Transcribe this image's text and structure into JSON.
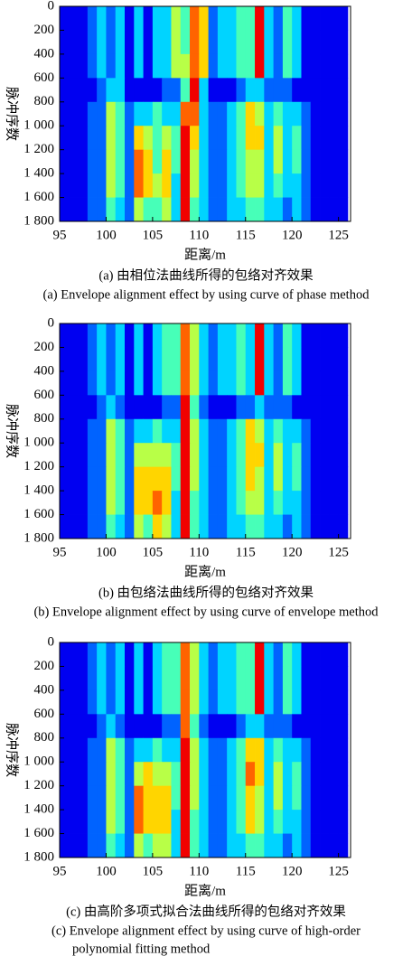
{
  "chart_data": [
    {
      "type": "heatmap",
      "x_label": "距离/m",
      "y_label": "脉冲序数",
      "caption_zh": "(a) 由相位法曲线所得的包络对齐效果",
      "caption_en": [
        "(a) Envelope alignment effect by using curve of phase method"
      ],
      "colormap": "jet",
      "zlim": [
        0,
        9
      ],
      "x_bins": [
        95,
        96,
        97,
        98,
        99,
        100,
        101,
        102,
        103,
        104,
        105,
        106,
        107,
        108,
        109,
        110,
        111,
        112,
        113,
        114,
        115,
        116,
        117,
        118,
        119,
        120,
        121,
        122,
        123,
        124,
        125,
        126
      ],
      "y_bins": [
        0,
        200,
        400,
        600,
        800,
        1000,
        1200,
        1400,
        1600,
        1800
      ],
      "values": [
        [
          1,
          1,
          1,
          2,
          3,
          2,
          3,
          1,
          3,
          1,
          3,
          3,
          5,
          4,
          7,
          6,
          2,
          3,
          3,
          4,
          4,
          8,
          3,
          2,
          4,
          3,
          1,
          1,
          1,
          1,
          1
        ],
        [
          1,
          1,
          1,
          2,
          3,
          2,
          3,
          1,
          3,
          1,
          3,
          3,
          5,
          4,
          7,
          6,
          2,
          3,
          3,
          4,
          4,
          8,
          3,
          2,
          4,
          3,
          1,
          1,
          1,
          1,
          1
        ],
        [
          1,
          1,
          1,
          2,
          3,
          2,
          3,
          1,
          3,
          1,
          3,
          3,
          5,
          5,
          7,
          6,
          2,
          3,
          3,
          4,
          4,
          8,
          3,
          2,
          4,
          3,
          1,
          1,
          1,
          1,
          1
        ],
        [
          1,
          1,
          1,
          1,
          2,
          3,
          3,
          1,
          1,
          1,
          1,
          2,
          2,
          4,
          8,
          3,
          1,
          1,
          1,
          2,
          3,
          3,
          2,
          2,
          2,
          1,
          1,
          1,
          1,
          1,
          1
        ],
        [
          1,
          1,
          1,
          2,
          2,
          5,
          4,
          2,
          3,
          3,
          4,
          3,
          3,
          7,
          7,
          3,
          2,
          2,
          3,
          4,
          6,
          5,
          3,
          4,
          3,
          3,
          2,
          1,
          1,
          1,
          1
        ],
        [
          1,
          1,
          1,
          2,
          2,
          5,
          4,
          2,
          6,
          5,
          4,
          5,
          4,
          8,
          6,
          3,
          2,
          2,
          3,
          4,
          6,
          6,
          3,
          5,
          3,
          4,
          2,
          1,
          1,
          1,
          1
        ],
        [
          1,
          1,
          1,
          2,
          2,
          5,
          4,
          2,
          7,
          6,
          4,
          6,
          4,
          8,
          5,
          3,
          2,
          2,
          3,
          4,
          5,
          5,
          3,
          5,
          3,
          4,
          2,
          1,
          1,
          1,
          1
        ],
        [
          1,
          1,
          1,
          2,
          2,
          5,
          4,
          2,
          7,
          6,
          5,
          6,
          3,
          8,
          5,
          3,
          2,
          2,
          3,
          4,
          5,
          5,
          3,
          4,
          3,
          3,
          2,
          1,
          1,
          1,
          1
        ],
        [
          1,
          1,
          1,
          2,
          2,
          4,
          3,
          2,
          5,
          4,
          4,
          5,
          3,
          8,
          4,
          3,
          2,
          2,
          3,
          3,
          4,
          4,
          3,
          3,
          2,
          3,
          2,
          1,
          1,
          1,
          1
        ]
      ],
      "xlim": [
        95,
        126.3
      ],
      "ylim": [
        1800,
        0
      ],
      "xticks": [
        95,
        100,
        105,
        110,
        115,
        120,
        125
      ],
      "yticks": [
        0,
        200,
        400,
        600,
        800,
        {
          "value": 1000,
          "label": "1 000"
        },
        {
          "value": 1200,
          "label": "1 200"
        },
        {
          "value": 1400,
          "label": "1 400"
        },
        {
          "value": 1600,
          "label": "1 600"
        },
        {
          "value": 1800,
          "label": "1 800"
        }
      ]
    },
    {
      "type": "heatmap",
      "x_label": "距离/m",
      "y_label": "脉冲序数",
      "caption_zh": "(b) 由包络法曲线所得的包络对齐效果",
      "caption_en": [
        "(b) Envelope alignment effect by using curve of envelope method"
      ],
      "colormap": "jet",
      "zlim": [
        0,
        9
      ],
      "x_bins": [
        95,
        96,
        97,
        98,
        99,
        100,
        101,
        102,
        103,
        104,
        105,
        106,
        107,
        108,
        109,
        110,
        111,
        112,
        113,
        114,
        115,
        116,
        117,
        118,
        119,
        120,
        121,
        122,
        123,
        124,
        125,
        126
      ],
      "y_bins": [
        0,
        200,
        400,
        600,
        800,
        1000,
        1200,
        1400,
        1600,
        1800
      ],
      "values": [
        [
          1,
          1,
          1,
          2,
          3,
          2,
          3,
          1,
          3,
          1,
          3,
          4,
          4,
          7,
          5,
          3,
          2,
          3,
          3,
          4,
          3,
          8,
          3,
          2,
          4,
          3,
          1,
          1,
          1,
          1,
          1
        ],
        [
          1,
          1,
          1,
          2,
          3,
          2,
          3,
          1,
          3,
          1,
          3,
          4,
          4,
          7,
          5,
          3,
          2,
          3,
          3,
          4,
          3,
          8,
          3,
          2,
          4,
          3,
          1,
          1,
          1,
          1,
          1
        ],
        [
          1,
          1,
          1,
          2,
          3,
          2,
          3,
          1,
          3,
          1,
          3,
          4,
          4,
          7,
          5,
          3,
          2,
          3,
          3,
          4,
          3,
          8,
          3,
          2,
          4,
          3,
          1,
          1,
          1,
          1,
          1
        ],
        [
          1,
          1,
          1,
          1,
          2,
          3,
          2,
          1,
          1,
          1,
          1,
          2,
          2,
          8,
          4,
          2,
          1,
          1,
          1,
          2,
          2,
          3,
          2,
          2,
          2,
          1,
          1,
          1,
          1,
          1,
          1
        ],
        [
          1,
          1,
          1,
          2,
          2,
          5,
          4,
          2,
          3,
          3,
          4,
          3,
          3,
          8,
          5,
          3,
          2,
          2,
          3,
          4,
          6,
          5,
          3,
          4,
          3,
          3,
          2,
          1,
          1,
          1,
          1
        ],
        [
          1,
          1,
          1,
          2,
          2,
          5,
          4,
          2,
          5,
          5,
          5,
          5,
          4,
          8,
          5,
          3,
          2,
          2,
          3,
          4,
          6,
          6,
          3,
          5,
          3,
          4,
          2,
          1,
          1,
          1,
          1
        ],
        [
          1,
          1,
          1,
          2,
          2,
          5,
          4,
          2,
          6,
          6,
          6,
          6,
          4,
          8,
          5,
          3,
          2,
          2,
          3,
          4,
          6,
          5,
          3,
          5,
          3,
          4,
          2,
          1,
          1,
          1,
          1
        ],
        [
          1,
          1,
          1,
          2,
          2,
          5,
          4,
          2,
          6,
          6,
          7,
          6,
          3,
          8,
          4,
          3,
          2,
          2,
          3,
          4,
          5,
          5,
          3,
          4,
          3,
          3,
          2,
          1,
          1,
          1,
          1
        ],
        [
          1,
          1,
          1,
          2,
          2,
          4,
          3,
          2,
          5,
          4,
          6,
          5,
          3,
          8,
          4,
          3,
          2,
          2,
          3,
          3,
          4,
          4,
          3,
          3,
          2,
          3,
          2,
          1,
          1,
          1,
          1
        ]
      ],
      "xlim": [
        95,
        126.3
      ],
      "ylim": [
        1800,
        0
      ],
      "xticks": [
        95,
        100,
        105,
        110,
        115,
        120,
        125
      ],
      "yticks": [
        0,
        200,
        400,
        600,
        800,
        {
          "value": 1000,
          "label": "1 000"
        },
        {
          "value": 1200,
          "label": "1 200"
        },
        {
          "value": 1400,
          "label": "1 400"
        },
        {
          "value": 1600,
          "label": "1 600"
        },
        {
          "value": 1800,
          "label": "1 800"
        }
      ]
    },
    {
      "type": "heatmap",
      "x_label": "距离/m",
      "y_label": "脉冲序数",
      "caption_zh": "(c) 由高阶多项式拟合法曲线所得的包络对齐效果",
      "caption_en": [
        "(c) Envelope alignment effect by using curve of high-order",
        "polynomial fitting method"
      ],
      "colormap": "jet",
      "zlim": [
        0,
        9
      ],
      "x_bins": [
        95,
        96,
        97,
        98,
        99,
        100,
        101,
        102,
        103,
        104,
        105,
        106,
        107,
        108,
        109,
        110,
        111,
        112,
        113,
        114,
        115,
        116,
        117,
        118,
        119,
        120,
        121,
        122,
        123,
        124,
        125,
        126
      ],
      "y_bins": [
        0,
        200,
        400,
        600,
        800,
        1000,
        1200,
        1400,
        1600,
        1800
      ],
      "values": [
        [
          1,
          1,
          1,
          2,
          3,
          2,
          3,
          1,
          3,
          1,
          3,
          4,
          4,
          7,
          5,
          3,
          2,
          3,
          3,
          4,
          4,
          8,
          3,
          2,
          4,
          3,
          1,
          1,
          1,
          1,
          1
        ],
        [
          1,
          1,
          1,
          2,
          3,
          2,
          3,
          1,
          3,
          1,
          3,
          4,
          4,
          7,
          5,
          3,
          2,
          3,
          3,
          4,
          4,
          8,
          3,
          2,
          4,
          3,
          1,
          1,
          1,
          1,
          1
        ],
        [
          1,
          1,
          1,
          2,
          3,
          2,
          3,
          1,
          3,
          1,
          3,
          4,
          4,
          7,
          5,
          3,
          2,
          3,
          3,
          4,
          4,
          8,
          3,
          2,
          4,
          3,
          1,
          1,
          1,
          1,
          1
        ],
        [
          1,
          1,
          1,
          1,
          2,
          3,
          2,
          1,
          1,
          1,
          1,
          2,
          2,
          7,
          4,
          2,
          1,
          1,
          1,
          2,
          3,
          3,
          2,
          2,
          2,
          1,
          1,
          1,
          1,
          1,
          1
        ],
        [
          1,
          1,
          1,
          2,
          2,
          5,
          4,
          2,
          3,
          3,
          4,
          3,
          3,
          8,
          5,
          3,
          2,
          2,
          3,
          4,
          6,
          6,
          3,
          4,
          3,
          3,
          2,
          1,
          1,
          1,
          1
        ],
        [
          1,
          1,
          1,
          2,
          2,
          5,
          4,
          2,
          5,
          6,
          5,
          5,
          4,
          8,
          5,
          3,
          2,
          2,
          3,
          4,
          7,
          6,
          3,
          5,
          3,
          4,
          2,
          1,
          1,
          1,
          1
        ],
        [
          1,
          1,
          1,
          2,
          2,
          5,
          4,
          2,
          7,
          6,
          6,
          6,
          4,
          8,
          5,
          3,
          2,
          2,
          3,
          4,
          6,
          5,
          3,
          5,
          3,
          4,
          2,
          1,
          1,
          1,
          1
        ],
        [
          1,
          1,
          1,
          2,
          2,
          5,
          4,
          2,
          7,
          6,
          6,
          6,
          3,
          8,
          4,
          3,
          2,
          2,
          3,
          4,
          6,
          5,
          3,
          4,
          3,
          3,
          2,
          1,
          1,
          1,
          1
        ],
        [
          1,
          1,
          1,
          2,
          2,
          4,
          3,
          2,
          5,
          4,
          5,
          5,
          3,
          8,
          4,
          3,
          2,
          2,
          3,
          3,
          4,
          4,
          3,
          3,
          2,
          3,
          2,
          1,
          1,
          1,
          1
        ]
      ],
      "xlim": [
        95,
        126.3
      ],
      "ylim": [
        1800,
        0
      ],
      "xticks": [
        95,
        100,
        105,
        110,
        115,
        120,
        125
      ],
      "yticks": [
        0,
        200,
        400,
        600,
        800,
        {
          "value": 1000,
          "label": "1 000"
        },
        {
          "value": 1200,
          "label": "1 200"
        },
        {
          "value": 1400,
          "label": "1 400"
        },
        {
          "value": 1600,
          "label": "1 600"
        },
        {
          "value": 1800,
          "label": "1 800"
        }
      ]
    }
  ]
}
